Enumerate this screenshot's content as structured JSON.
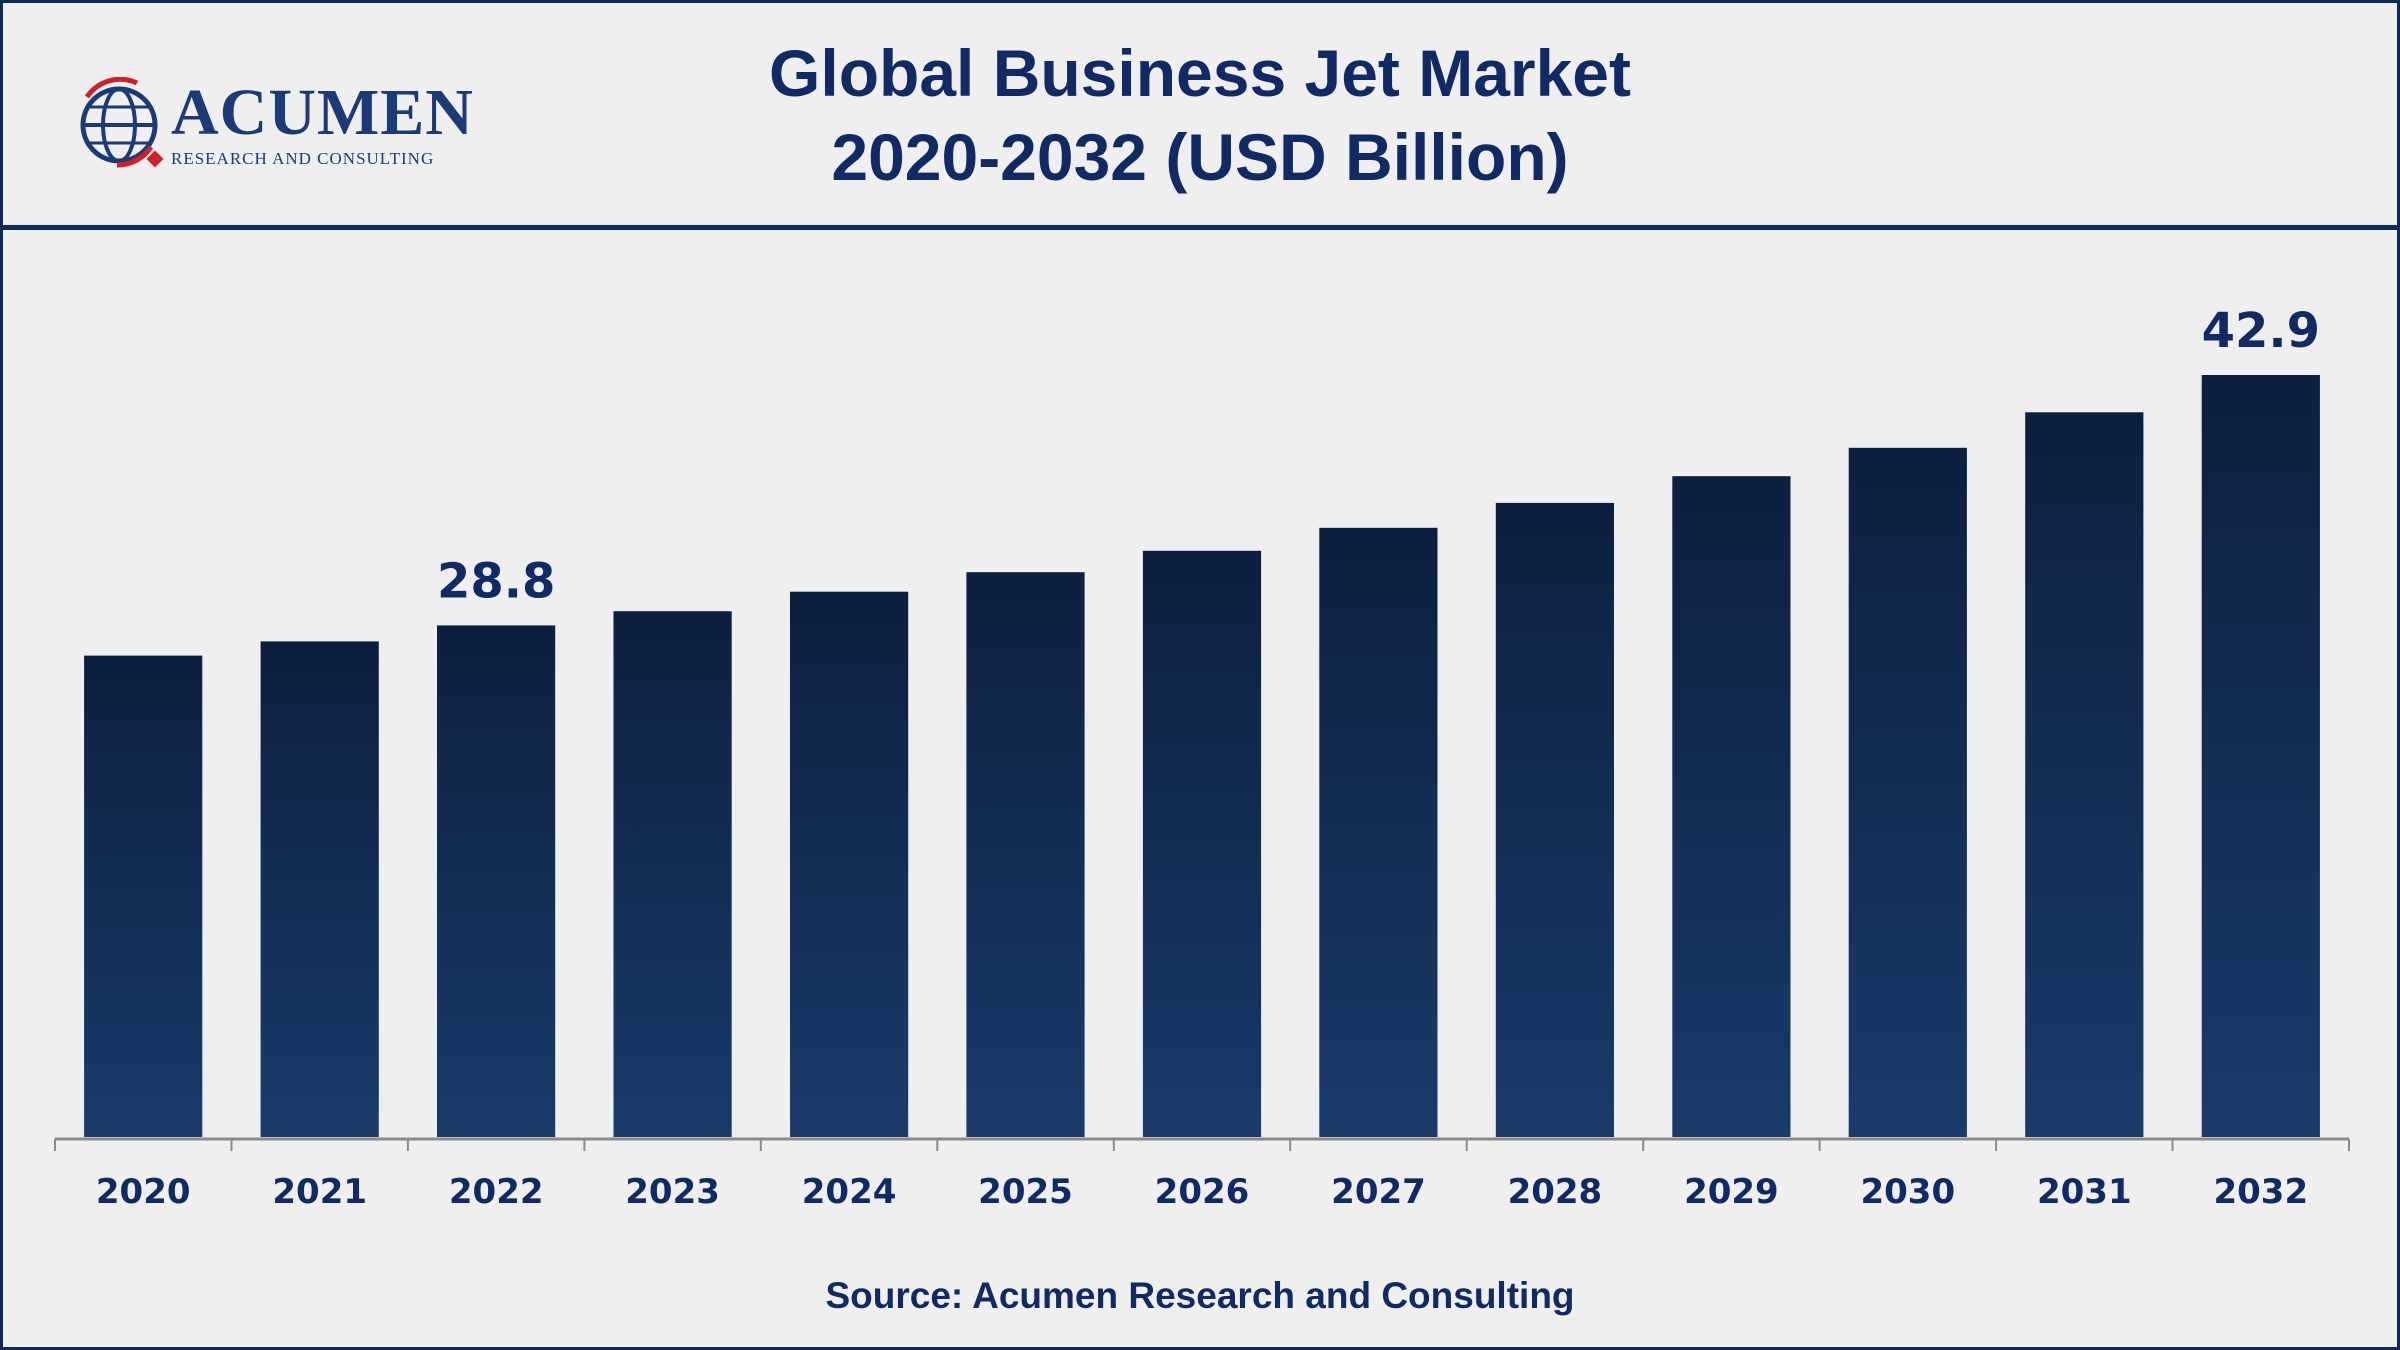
{
  "header": {
    "title_line1": "Global Business Jet Market",
    "title_line2": "2020-2032 (USD Billion)"
  },
  "logo": {
    "name": "ACUMEN",
    "tagline": "RESEARCH AND CONSULTING",
    "icon": "globe-icon"
  },
  "footer": {
    "source": "Source: Acumen Research and Consulting"
  },
  "colors": {
    "bar_top": "#0d1f3f",
    "bar_bottom": "#1a3b6b",
    "text": "#102a66",
    "axis": "#8a8a8a"
  },
  "chart_data": {
    "type": "bar",
    "categories": [
      "2020",
      "2021",
      "2022",
      "2023",
      "2024",
      "2025",
      "2026",
      "2027",
      "2028",
      "2029",
      "2030",
      "2031",
      "2032"
    ],
    "values": [
      27.1,
      27.9,
      28.8,
      29.6,
      30.7,
      31.8,
      33.0,
      34.3,
      35.7,
      37.2,
      38.8,
      40.8,
      42.9
    ],
    "data_labels": [
      {
        "category": "2022",
        "label": "28.8"
      },
      {
        "category": "2032",
        "label": "42.9"
      }
    ],
    "title": "Global Business Jet Market 2020-2032 (USD Billion)",
    "xlabel": "",
    "ylabel": "",
    "ylim": [
      0,
      42.9
    ],
    "grid": false,
    "legend": "none"
  }
}
